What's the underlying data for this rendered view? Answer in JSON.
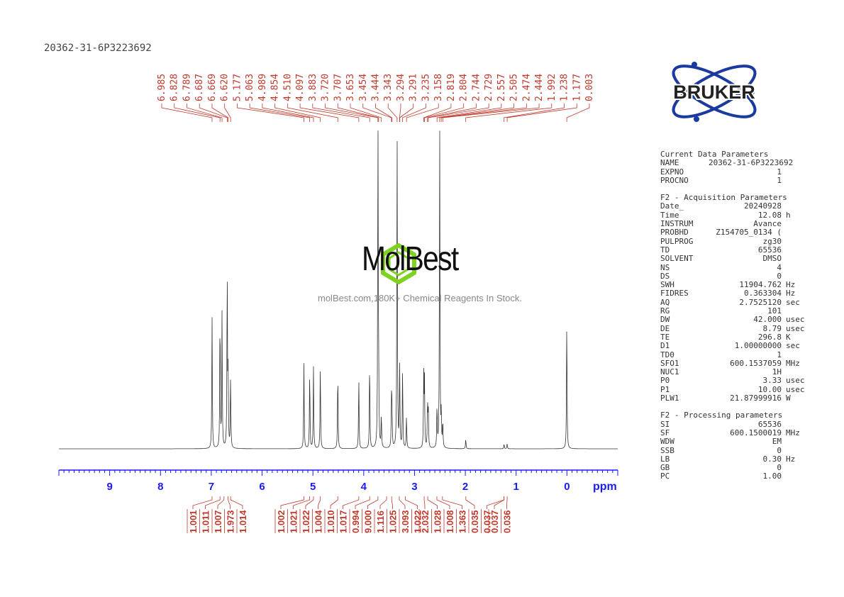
{
  "sample_id": "20362-31-6P3223692",
  "logo_text": "BRUKER",
  "watermark": {
    "brand": "MolBest",
    "tagline": "molBest.com,180K+ Chemical Reagents In Stock."
  },
  "params": {
    "sections": [
      {
        "title": "Current Data Parameters",
        "rows": [
          {
            "name": "NAME",
            "value": "20362-31-6P3223692",
            "unit": ""
          },
          {
            "name": "EXPNO",
            "value": "1",
            "unit": ""
          },
          {
            "name": "PROCNO",
            "value": "1",
            "unit": ""
          }
        ]
      },
      {
        "title": "F2 - Acquisition Parameters",
        "rows": [
          {
            "name": "Date_",
            "value": "20240928",
            "unit": ""
          },
          {
            "name": "Time",
            "value": "12.08",
            "unit": "h"
          },
          {
            "name": "INSTRUM",
            "value": "Avance",
            "unit": ""
          },
          {
            "name": "PROBHD",
            "value": "Z154705_0134 (",
            "unit": ""
          },
          {
            "name": "PULPROG",
            "value": "zg30",
            "unit": ""
          },
          {
            "name": "TD",
            "value": "65536",
            "unit": ""
          },
          {
            "name": "SOLVENT",
            "value": "DMSO",
            "unit": ""
          },
          {
            "name": "NS",
            "value": "4",
            "unit": ""
          },
          {
            "name": "DS",
            "value": "0",
            "unit": ""
          },
          {
            "name": "SWH",
            "value": "11904.762",
            "unit": "Hz"
          },
          {
            "name": "FIDRES",
            "value": "0.363304",
            "unit": "Hz"
          },
          {
            "name": "AQ",
            "value": "2.7525120",
            "unit": "sec"
          },
          {
            "name": "RG",
            "value": "101",
            "unit": ""
          },
          {
            "name": "DW",
            "value": "42.000",
            "unit": "usec"
          },
          {
            "name": "DE",
            "value": "8.79",
            "unit": "usec"
          },
          {
            "name": "TE",
            "value": "296.8",
            "unit": "K"
          },
          {
            "name": "D1",
            "value": "1.00000000",
            "unit": "sec"
          },
          {
            "name": "TD0",
            "value": "1",
            "unit": ""
          },
          {
            "name": "SFO1",
            "value": "600.1537059",
            "unit": "MHz"
          },
          {
            "name": "NUC1",
            "value": "1H",
            "unit": ""
          },
          {
            "name": "P0",
            "value": "3.33",
            "unit": "usec"
          },
          {
            "name": "P1",
            "value": "10.00",
            "unit": "usec"
          },
          {
            "name": "PLW1",
            "value": "21.87999916",
            "unit": "W"
          }
        ]
      },
      {
        "title": "F2 - Processing parameters",
        "rows": [
          {
            "name": "SI",
            "value": "65536",
            "unit": ""
          },
          {
            "name": "SF",
            "value": "600.1500019",
            "unit": "MHz"
          },
          {
            "name": "WDW",
            "value": "EM",
            "unit": ""
          },
          {
            "name": "SSB",
            "value": "0",
            "unit": ""
          },
          {
            "name": "LB",
            "value": "0.30",
            "unit": "Hz"
          },
          {
            "name": "GB",
            "value": "0",
            "unit": ""
          },
          {
            "name": "PC",
            "value": "1.00",
            "unit": ""
          }
        ]
      }
    ]
  },
  "chart_data": {
    "type": "line",
    "xlabel": "ppm",
    "xlim": [
      10.0,
      -1.0
    ],
    "x_ticks": [
      "9",
      "8",
      "7",
      "6",
      "5",
      "4",
      "3",
      "2",
      "1",
      "0"
    ],
    "peak_labels": [
      "6.985",
      "6.828",
      "6.789",
      "6.687",
      "6.669",
      "6.620",
      "5.177",
      "5.063",
      "4.989",
      "4.854",
      "4.510",
      "4.097",
      "3.883",
      "3.720",
      "3.707",
      "3.653",
      "3.454",
      "3.444",
      "3.343",
      "3.294",
      "3.291",
      "3.235",
      "3.158",
      "2.819",
      "2.804",
      "2.744",
      "2.729",
      "2.557",
      "2.505",
      "2.474",
      "2.444",
      "1.992",
      "1.238",
      "1.177",
      "0.003"
    ],
    "peaks": [
      {
        "x": 6.985,
        "h": 0.4
      },
      {
        "x": 6.828,
        "h": 0.42
      },
      {
        "x": 6.789,
        "h": 0.41
      },
      {
        "x": 6.687,
        "h": 0.55
      },
      {
        "x": 6.669,
        "h": 0.22
      },
      {
        "x": 6.62,
        "h": 0.22
      },
      {
        "x": 5.177,
        "h": 0.26
      },
      {
        "x": 5.063,
        "h": 0.24
      },
      {
        "x": 4.989,
        "h": 0.25
      },
      {
        "x": 4.854,
        "h": 0.26
      },
      {
        "x": 4.51,
        "h": 0.24
      },
      {
        "x": 4.097,
        "h": 0.22
      },
      {
        "x": 3.883,
        "h": 0.27
      },
      {
        "x": 3.72,
        "h": 1.0
      },
      {
        "x": 3.707,
        "h": 0.2
      },
      {
        "x": 3.653,
        "h": 0.1
      },
      {
        "x": 3.454,
        "h": 0.14
      },
      {
        "x": 3.444,
        "h": 0.12
      },
      {
        "x": 3.343,
        "h": 1.0
      },
      {
        "x": 3.294,
        "h": 0.14
      },
      {
        "x": 3.291,
        "h": 0.12
      },
      {
        "x": 3.235,
        "h": 0.24
      },
      {
        "x": 3.158,
        "h": 0.1
      },
      {
        "x": 2.819,
        "h": 0.22
      },
      {
        "x": 2.804,
        "h": 0.2
      },
      {
        "x": 2.744,
        "h": 0.14
      },
      {
        "x": 2.729,
        "h": 0.12
      },
      {
        "x": 2.557,
        "h": 0.13
      },
      {
        "x": 2.505,
        "h": 1.0
      },
      {
        "x": 2.474,
        "h": 0.1
      },
      {
        "x": 2.444,
        "h": 0.08
      },
      {
        "x": 1.992,
        "h": 0.03
      },
      {
        "x": 1.238,
        "h": 0.015
      },
      {
        "x": 1.177,
        "h": 0.015
      },
      {
        "x": 0.003,
        "h": 0.4
      }
    ],
    "integrals": [
      {
        "value": "1.001",
        "x": 6.985
      },
      {
        "value": "1.011",
        "x": 6.828
      },
      {
        "value": "1.007",
        "x": 6.75
      },
      {
        "value": "1.973",
        "x": 6.67
      },
      {
        "value": "1.014",
        "x": 6.62
      },
      {
        "value": "1.002",
        "x": 5.177
      },
      {
        "value": "1.021",
        "x": 5.063
      },
      {
        "value": "1.022",
        "x": 4.989
      },
      {
        "value": "1.004",
        "x": 4.854
      },
      {
        "value": "1.010",
        "x": 4.51
      },
      {
        "value": "1.017",
        "x": 4.097
      },
      {
        "value": "0.994",
        "x": 3.883
      },
      {
        "value": "9.000",
        "x": 3.72
      },
      {
        "value": "1.116",
        "x": 3.55
      },
      {
        "value": "1.025",
        "x": 3.45
      },
      {
        "value": "3.093",
        "x": 3.3
      },
      {
        "value": "1.022",
        "x": 3.18
      },
      {
        "value": "2.032",
        "x": 2.81
      },
      {
        "value": "1.028",
        "x": 2.74
      },
      {
        "value": "1.008",
        "x": 2.56
      },
      {
        "value": "1.363",
        "x": 2.45
      },
      {
        "value": "0.035",
        "x": 1.99
      },
      {
        "value": "0.037",
        "x": 1.238
      },
      {
        "value": "0.036",
        "x": 1.177
      }
    ]
  }
}
